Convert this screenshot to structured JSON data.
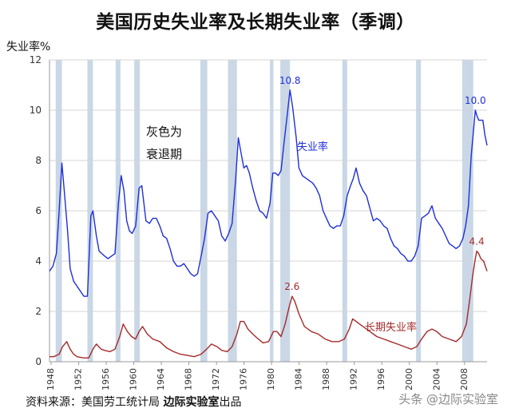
{
  "title": "美国历史失业率及长期失业率（季调）",
  "source_label": "资料来源：美国劳工统计局",
  "source_org": "边际实验室",
  "source_suffix": "出品",
  "note_line1": "灰色为",
  "note_line2": "衰退期",
  "watermark": "头条 @边际实验室",
  "colors": {
    "unemployment": "#1f2fd8",
    "long_term": "#a52a2a",
    "recession": "#c9d7e6",
    "grid": "#d4d4d4"
  },
  "chart_data": {
    "type": "line",
    "ylabel": "失业率%",
    "ylim": [
      0,
      12
    ],
    "yticks": [
      0,
      2,
      4,
      6,
      8,
      10,
      12
    ],
    "xlim": [
      1948,
      2011.5
    ],
    "xticks": [
      "1948",
      "1952",
      "1956",
      "1960",
      "1964",
      "1968",
      "1972",
      "1976",
      "1980",
      "1984",
      "1988",
      "1992",
      "1996",
      "2000",
      "2004",
      "2008"
    ],
    "grid": "horizontal",
    "recessions": [
      [
        1948.9,
        1949.8
      ],
      [
        1953.5,
        1954.3
      ],
      [
        1957.6,
        1958.3
      ],
      [
        1960.3,
        1961.1
      ],
      [
        1969.9,
        1970.9
      ],
      [
        1973.9,
        1975.2
      ],
      [
        1980.0,
        1980.5
      ],
      [
        1981.5,
        1982.9
      ],
      [
        1990.5,
        1991.2
      ],
      [
        2001.2,
        2001.9
      ],
      [
        2007.9,
        2009.5
      ]
    ],
    "series": [
      {
        "name": "失业率",
        "x": [
          1948.0,
          1948.5,
          1949.0,
          1949.4,
          1949.8,
          1950.2,
          1950.6,
          1951.0,
          1951.5,
          1952.0,
          1952.5,
          1953.0,
          1953.5,
          1954.0,
          1954.3,
          1954.8,
          1955.2,
          1955.6,
          1956.0,
          1956.5,
          1957.0,
          1957.5,
          1958.0,
          1958.4,
          1958.8,
          1959.2,
          1959.6,
          1960.0,
          1960.5,
          1961.0,
          1961.4,
          1962.0,
          1962.5,
          1963.0,
          1963.5,
          1964.0,
          1964.5,
          1965.0,
          1965.5,
          1966.0,
          1966.5,
          1967.0,
          1967.5,
          1968.0,
          1968.5,
          1969.0,
          1969.5,
          1970.0,
          1970.5,
          1971.0,
          1971.5,
          1972.0,
          1972.5,
          1973.0,
          1973.5,
          1974.0,
          1974.5,
          1975.0,
          1975.4,
          1975.8,
          1976.2,
          1976.6,
          1977.0,
          1977.5,
          1978.0,
          1978.5,
          1979.0,
          1979.5,
          1980.0,
          1980.4,
          1980.8,
          1981.2,
          1981.6,
          1982.0,
          1982.5,
          1982.9,
          1983.3,
          1983.8,
          1984.2,
          1984.7,
          1985.2,
          1985.7,
          1986.2,
          1986.7,
          1987.2,
          1987.7,
          1988.2,
          1988.7,
          1989.2,
          1989.7,
          1990.2,
          1990.7,
          1991.2,
          1991.7,
          1992.1,
          1992.5,
          1993.0,
          1993.5,
          1994.0,
          1994.5,
          1995.0,
          1995.5,
          1996.0,
          1996.5,
          1997.0,
          1997.5,
          1998.0,
          1998.5,
          1999.0,
          1999.5,
          2000.0,
          2000.5,
          2001.0,
          2001.5,
          2002.0,
          2002.5,
          2003.0,
          2003.5,
          2004.0,
          2004.5,
          2005.0,
          2005.5,
          2006.0,
          2006.5,
          2007.0,
          2007.5,
          2008.0,
          2008.4,
          2008.8,
          2009.2,
          2009.6,
          2009.8,
          2010.0,
          2010.3,
          2010.6,
          2010.9,
          2011.2,
          2011.5
        ],
        "values": [
          3.6,
          3.8,
          4.3,
          6.0,
          7.9,
          6.6,
          5.3,
          3.7,
          3.2,
          3.0,
          2.8,
          2.6,
          2.6,
          5.8,
          6.0,
          5.0,
          4.4,
          4.3,
          4.2,
          4.1,
          4.2,
          4.3,
          6.3,
          7.4,
          6.8,
          5.6,
          5.2,
          5.1,
          5.4,
          6.9,
          7.0,
          5.6,
          5.5,
          5.7,
          5.7,
          5.4,
          5.0,
          4.9,
          4.5,
          4.0,
          3.8,
          3.8,
          3.9,
          3.7,
          3.5,
          3.4,
          3.5,
          4.2,
          4.9,
          5.9,
          6.0,
          5.8,
          5.6,
          5.0,
          4.8,
          5.1,
          5.5,
          7.2,
          8.9,
          8.3,
          7.7,
          7.8,
          7.5,
          6.9,
          6.4,
          6.0,
          5.9,
          5.7,
          6.3,
          7.5,
          7.5,
          7.4,
          7.6,
          8.6,
          9.8,
          10.8,
          10.1,
          8.9,
          7.7,
          7.4,
          7.3,
          7.2,
          7.1,
          6.9,
          6.6,
          6.0,
          5.7,
          5.4,
          5.3,
          5.4,
          5.4,
          5.8,
          6.6,
          7.0,
          7.3,
          7.7,
          7.1,
          6.8,
          6.6,
          6.1,
          5.6,
          5.7,
          5.6,
          5.4,
          5.3,
          4.9,
          4.6,
          4.5,
          4.3,
          4.2,
          4.0,
          4.0,
          4.2,
          4.6,
          5.7,
          5.8,
          5.9,
          6.2,
          5.7,
          5.5,
          5.3,
          5.0,
          4.7,
          4.6,
          4.5,
          4.6,
          4.9,
          5.4,
          6.2,
          8.2,
          9.4,
          10.0,
          9.8,
          9.6,
          9.6,
          9.6,
          9.0,
          8.6
        ],
        "label": "失业率",
        "peak_label": "10.8",
        "end_peak_label": "10.0"
      },
      {
        "name": "长期失业率",
        "x": [
          1948.0,
          1948.6,
          1949.4,
          1949.9,
          1950.5,
          1951.0,
          1951.5,
          1952.0,
          1953.0,
          1953.7,
          1954.3,
          1954.8,
          1955.5,
          1956.0,
          1956.8,
          1957.5,
          1958.2,
          1958.7,
          1959.3,
          1959.9,
          1960.5,
          1961.0,
          1961.5,
          1962.2,
          1963.0,
          1964.0,
          1965.0,
          1966.0,
          1967.0,
          1968.0,
          1969.0,
          1970.0,
          1970.8,
          1971.5,
          1972.3,
          1973.0,
          1973.8,
          1974.5,
          1975.2,
          1975.7,
          1976.2,
          1976.8,
          1977.5,
          1978.3,
          1979.0,
          1979.8,
          1980.5,
          1981.0,
          1981.6,
          1982.2,
          1982.8,
          1983.2,
          1983.6,
          1984.2,
          1985.0,
          1986.0,
          1987.0,
          1988.0,
          1989.0,
          1990.0,
          1990.8,
          1991.5,
          1992.0,
          1992.5,
          1993.0,
          1993.5,
          1994.5,
          1995.5,
          1996.5,
          1997.5,
          1998.5,
          1999.5,
          2000.5,
          2001.3,
          2002.0,
          2002.8,
          2003.5,
          2004.2,
          2005.0,
          2006.0,
          2007.0,
          2007.8,
          2008.5,
          2009.0,
          2009.4,
          2009.8,
          2010.0,
          2010.3,
          2010.6,
          2011.0,
          2011.5
        ],
        "values": [
          0.2,
          0.2,
          0.3,
          0.6,
          0.8,
          0.5,
          0.3,
          0.2,
          0.15,
          0.15,
          0.5,
          0.7,
          0.5,
          0.45,
          0.4,
          0.5,
          1.0,
          1.5,
          1.2,
          1.0,
          0.9,
          1.2,
          1.4,
          1.1,
          0.9,
          0.8,
          0.55,
          0.4,
          0.3,
          0.25,
          0.2,
          0.3,
          0.5,
          0.7,
          0.6,
          0.45,
          0.4,
          0.6,
          1.1,
          1.6,
          1.6,
          1.3,
          1.1,
          0.9,
          0.75,
          0.8,
          1.2,
          1.2,
          1.0,
          1.5,
          2.2,
          2.6,
          2.4,
          1.9,
          1.4,
          1.2,
          1.1,
          0.9,
          0.8,
          0.8,
          0.9,
          1.3,
          1.7,
          1.6,
          1.5,
          1.4,
          1.2,
          1.0,
          0.9,
          0.8,
          0.7,
          0.6,
          0.5,
          0.6,
          0.9,
          1.2,
          1.3,
          1.2,
          1.0,
          0.9,
          0.8,
          1.0,
          1.5,
          2.5,
          3.4,
          4.1,
          4.4,
          4.3,
          4.1,
          4.0,
          3.6
        ],
        "label": "长期失业率",
        "peak_label": "2.6",
        "end_peak_label": "4.4"
      }
    ]
  }
}
